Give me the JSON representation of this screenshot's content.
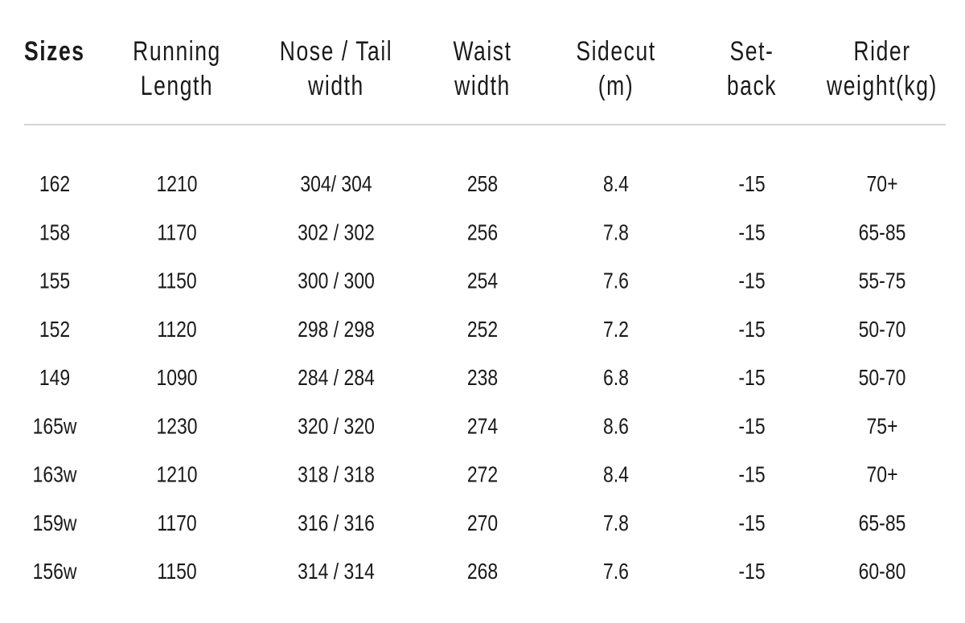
{
  "table": {
    "header": [
      "Sizes",
      "Running\nLength",
      "Nose / Tail\nwidth",
      "Waist\nwidth",
      "Sidecut\n(m)",
      "Set-\nback",
      "Rider\nweight(kg)"
    ],
    "rows": [
      [
        "162",
        "1210",
        "304/ 304",
        "258",
        "8.4",
        "-15",
        "70+"
      ],
      [
        "158",
        "1170",
        "302 / 302",
        "256",
        "7.8",
        "-15",
        "65-85"
      ],
      [
        "155",
        "1150",
        "300 / 300",
        "254",
        "7.6",
        "-15",
        "55-75"
      ],
      [
        "152",
        "1120",
        "298 / 298",
        "252",
        "7.2",
        "-15",
        "50-70"
      ],
      [
        "149",
        "1090",
        "284 / 284",
        "238",
        "6.8",
        "-15",
        "50-70"
      ],
      [
        "165w",
        "1230",
        "320 / 320",
        "274",
        "8.6",
        "-15",
        "75+"
      ],
      [
        "163w",
        "1210",
        "318 / 318",
        "272",
        "8.4",
        "-15",
        "70+"
      ],
      [
        "159w",
        "1170",
        "316 / 316",
        "270",
        "7.8",
        "-15",
        "65-85"
      ],
      [
        "156w",
        "1150",
        "314 / 314",
        "268",
        "7.6",
        "-15",
        "60-80"
      ]
    ]
  }
}
